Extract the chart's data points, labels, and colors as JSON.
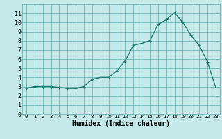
{
  "x": [
    0,
    1,
    2,
    3,
    4,
    5,
    6,
    7,
    8,
    9,
    10,
    11,
    12,
    13,
    14,
    15,
    16,
    17,
    18,
    19,
    20,
    21,
    22,
    23
  ],
  "y": [
    2.8,
    3.0,
    3.0,
    3.0,
    2.9,
    2.8,
    2.8,
    3.0,
    3.8,
    4.0,
    4.0,
    4.7,
    5.8,
    7.5,
    7.7,
    8.0,
    9.8,
    10.3,
    11.1,
    10.0,
    8.6,
    7.5,
    5.7,
    2.9
  ],
  "xlabel": "Humidex (Indice chaleur)",
  "ylabel": "",
  "ylim": [
    0,
    12
  ],
  "xlim": [
    -0.5,
    23.5
  ],
  "yticks": [
    0,
    1,
    2,
    3,
    4,
    5,
    6,
    7,
    8,
    9,
    10,
    11
  ],
  "xticks": [
    0,
    1,
    2,
    3,
    4,
    5,
    6,
    7,
    8,
    9,
    10,
    11,
    12,
    13,
    14,
    15,
    16,
    17,
    18,
    19,
    20,
    21,
    22,
    23
  ],
  "line_color": "#1a7a6e",
  "marker_color": "#1a7a6e",
  "bg_color": "#c5e8e8",
  "grid_color": "#5aadad",
  "xlabel_fontsize": 7,
  "tick_fontsize": 6,
  "line_width": 1.0,
  "marker_size": 2.5
}
